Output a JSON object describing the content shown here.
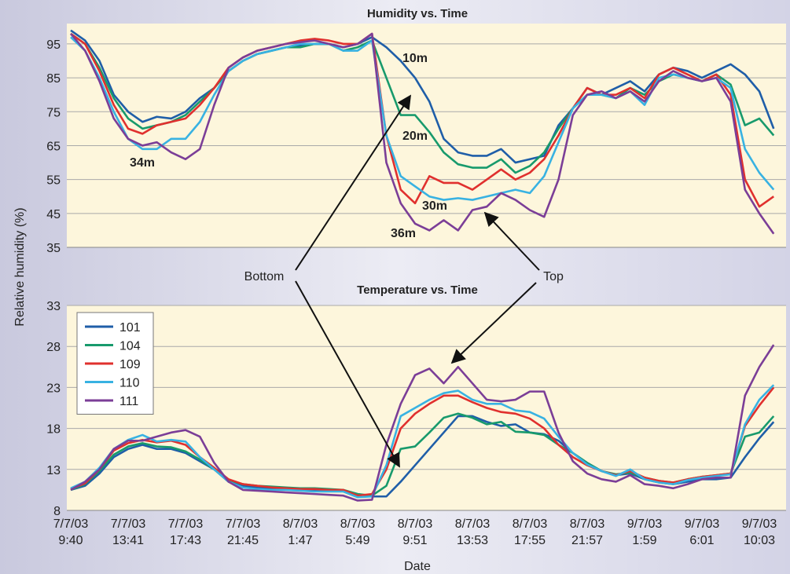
{
  "annotations": [
    "Bottom",
    "Top"
  ],
  "chart_data": [
    {
      "type": "line",
      "title": "Humidity vs. Time",
      "y_label": "Relative humidity (%)",
      "ylim": [
        35,
        101
      ],
      "yticks": [
        35,
        45,
        55,
        65,
        75,
        85,
        95
      ],
      "grid": true,
      "series": [
        {
          "name": "10m",
          "color": "#1f5ea8",
          "values": [
            99,
            96,
            90,
            80,
            75,
            72,
            73.5,
            73,
            75,
            79,
            82,
            87,
            90,
            92,
            93,
            94,
            94.5,
            95,
            95,
            94,
            95,
            97,
            94,
            90,
            85,
            78,
            67,
            63,
            62,
            62,
            64,
            60,
            61,
            62,
            71,
            76,
            82,
            80,
            82,
            84,
            81,
            86,
            88,
            87,
            85,
            87,
            89,
            86,
            81,
            70
          ]
        },
        {
          "name": "20m",
          "color": "#189a6c",
          "values": [
            98,
            95,
            88,
            79,
            73,
            70,
            71,
            72,
            74,
            78,
            82,
            87,
            90,
            92,
            93,
            94,
            94,
            95,
            95,
            93,
            94,
            96,
            85,
            74,
            74,
            69,
            63,
            59.5,
            58.5,
            58.5,
            61,
            57,
            59,
            63,
            70,
            76,
            80,
            80,
            79,
            82,
            80,
            84,
            86,
            85,
            84,
            86,
            83,
            71,
            73,
            68
          ]
        },
        {
          "name": "30m",
          "color": "#e0302e",
          "values": [
            98,
            95,
            87,
            77,
            70,
            68.5,
            71,
            72,
            73,
            77,
            82,
            88,
            91,
            93,
            94,
            95,
            96,
            96.5,
            96,
            95,
            95,
            98,
            68,
            52,
            48,
            56,
            54,
            54,
            52,
            55,
            58,
            55,
            57,
            61,
            68,
            76,
            82,
            80,
            80,
            82,
            79,
            86,
            88,
            86,
            84,
            86,
            80,
            55,
            47,
            50
          ]
        },
        {
          "name": "34m",
          "color": "#38b2e2",
          "values": [
            97,
            93,
            85,
            75,
            67,
            64,
            64,
            67,
            67,
            72,
            80,
            87,
            90,
            92,
            93,
            94,
            95,
            95,
            95,
            93,
            93,
            96,
            68,
            56,
            53,
            50,
            49,
            49.5,
            49,
            50,
            51,
            52,
            51,
            56,
            66,
            76,
            80,
            80,
            79,
            81,
            77,
            85,
            86,
            85,
            84,
            85,
            82,
            64,
            57,
            52
          ]
        },
        {
          "name": "36m",
          "color": "#7b3e97",
          "values": [
            98,
            93,
            84,
            73,
            67,
            65,
            66,
            63,
            61,
            64,
            77,
            88,
            91,
            93,
            94,
            95,
            95.5,
            96,
            95,
            94,
            95,
            98,
            60,
            48,
            42,
            40,
            43,
            40,
            46,
            47,
            51,
            49,
            46,
            44,
            55,
            74,
            80,
            81,
            79,
            81,
            78,
            84,
            87,
            85,
            84,
            85,
            78,
            52,
            45,
            39
          ]
        }
      ]
    },
    {
      "type": "line",
      "title": "Temperature vs. Time",
      "x_label": "Date",
      "categories": [
        "7/7/03 9:40",
        null,
        null,
        null,
        "7/7/03 13:41",
        null,
        null,
        null,
        "7/7/03 17:43",
        null,
        null,
        null,
        "7/7/03 21:45",
        null,
        null,
        null,
        "8/7/03 1:47",
        null,
        null,
        null,
        "8/7/03 5:49",
        null,
        null,
        null,
        "8/7/03 9:51",
        null,
        null,
        null,
        "8/7/03 13:53",
        null,
        null,
        null,
        "8/7/03 17:55",
        null,
        null,
        null,
        "8/7/03 21:57",
        null,
        null,
        null,
        "9/7/03 1:59",
        null,
        null,
        null,
        "9/7/03 6:01",
        null,
        null,
        null,
        "9/7/03 10:03",
        null
      ],
      "ylim": [
        8,
        33
      ],
      "yticks": [
        8,
        13,
        18,
        23,
        28,
        33
      ],
      "grid": true,
      "legend": "upper left",
      "series": [
        {
          "name": "101",
          "color": "#1f5ea8",
          "values": [
            10.5,
            11,
            12.5,
            14.5,
            15.5,
            16,
            15.5,
            15.5,
            15,
            14,
            13,
            11.5,
            11,
            10.8,
            10.7,
            10.6,
            10.5,
            10.5,
            10.5,
            10.4,
            10,
            9.7,
            9.7,
            11.5,
            13.5,
            15.5,
            17.5,
            19.5,
            19.5,
            18.8,
            18.3,
            18.5,
            17.5,
            17.3,
            16.5,
            15,
            13.8,
            12.8,
            12.3,
            12.5,
            11.8,
            11.4,
            11.2,
            11.5,
            11.8,
            11.8,
            12,
            14.5,
            16.8,
            18.8
          ]
        },
        {
          "name": "104",
          "color": "#189a6c",
          "values": [
            10.5,
            11.2,
            12.8,
            14.8,
            15.8,
            16.2,
            15.8,
            15.7,
            15.2,
            14.2,
            13,
            11.7,
            11.2,
            11,
            10.9,
            10.8,
            10.7,
            10.7,
            10.6,
            10.5,
            10,
            9.8,
            11,
            15.5,
            15.8,
            17.5,
            19.3,
            19.8,
            19.3,
            18.5,
            18.8,
            17.6,
            17.5,
            17.2,
            16,
            15,
            13.8,
            12.8,
            12.4,
            12.6,
            12,
            11.6,
            11.4,
            11.8,
            12.1,
            12.3,
            12.5,
            17,
            17.5,
            19.5
          ]
        },
        {
          "name": "109",
          "color": "#e0302e",
          "values": [
            10.6,
            11.3,
            13,
            15.3,
            16.2,
            16.6,
            16.3,
            16.5,
            16,
            14.5,
            13.2,
            11.8,
            11.2,
            11,
            10.8,
            10.7,
            10.6,
            10.6,
            10.5,
            10.5,
            9.8,
            10,
            13,
            18,
            19.8,
            21,
            22,
            22,
            21.2,
            20.5,
            20,
            19.8,
            19.2,
            18,
            16,
            14.5,
            13.5,
            12.8,
            12.3,
            12.8,
            12,
            11.6,
            11.4,
            11.8,
            12.1,
            12.3,
            12.5,
            18.3,
            20.8,
            23
          ]
        },
        {
          "name": "110",
          "color": "#38b2e2",
          "values": [
            10.7,
            11.5,
            13.2,
            15.5,
            16.6,
            17.2,
            16.4,
            16.6,
            16.4,
            14.5,
            13,
            11.5,
            10.8,
            10.6,
            10.5,
            10.5,
            10.4,
            10.3,
            10.3,
            10.3,
            9.6,
            9.7,
            13.5,
            19.5,
            20.5,
            21.5,
            22.3,
            22.6,
            21.5,
            21,
            21,
            20.2,
            20,
            19.2,
            17,
            15,
            13.6,
            12.8,
            12.2,
            13,
            11.8,
            11.4,
            11.2,
            11.7,
            12,
            12.2,
            12.4,
            18.5,
            21.5,
            23.3
          ]
        },
        {
          "name": "111",
          "color": "#7b3e97",
          "values": [
            10.5,
            11.5,
            13,
            15.5,
            16.5,
            16.5,
            17,
            17.5,
            17.8,
            17,
            13.8,
            11.5,
            10.5,
            10.4,
            10.3,
            10.2,
            10.1,
            10,
            9.9,
            9.8,
            9.2,
            9.3,
            16,
            21,
            24.5,
            25.3,
            23.5,
            25.5,
            23.5,
            21.5,
            21.3,
            21.5,
            22.5,
            22.5,
            17.5,
            14,
            12.5,
            11.8,
            11.5,
            12.3,
            11.2,
            11,
            10.7,
            11.2,
            11.8,
            12,
            12,
            22,
            25.5,
            28.2
          ]
        }
      ]
    }
  ]
}
